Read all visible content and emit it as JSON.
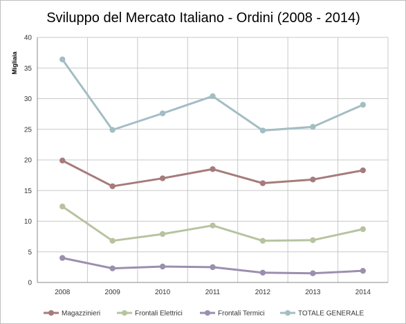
{
  "chart_data": {
    "type": "line",
    "title": "Sviluppo del Mercato Italiano - Ordini (2008 - 2014)",
    "ylabel": "Migliaia",
    "xlabel": "",
    "categories": [
      "2008",
      "2009",
      "2010",
      "2011",
      "2012",
      "2013",
      "2014"
    ],
    "ylim": [
      0,
      40
    ],
    "yticks": [
      0,
      5,
      10,
      15,
      20,
      25,
      30,
      35,
      40
    ],
    "grid": true,
    "legend_position": "bottom",
    "series": [
      {
        "name": "Magazzinieri",
        "color": "#a67b7b",
        "values": [
          19.9,
          15.7,
          17.0,
          18.5,
          16.2,
          16.8,
          18.3
        ]
      },
      {
        "name": "Frontali Elettrici",
        "color": "#b7c3a0",
        "values": [
          12.4,
          6.8,
          7.9,
          9.3,
          6.8,
          6.9,
          8.7
        ]
      },
      {
        "name": "Frontali Termici",
        "color": "#9b8fae",
        "values": [
          4.0,
          2.3,
          2.6,
          2.5,
          1.6,
          1.5,
          1.9
        ]
      },
      {
        "name": "TOTALE GENERALE",
        "color": "#a3bdc4",
        "values": [
          36.4,
          24.9,
          27.6,
          30.4,
          24.8,
          25.4,
          29.0
        ]
      }
    ]
  }
}
